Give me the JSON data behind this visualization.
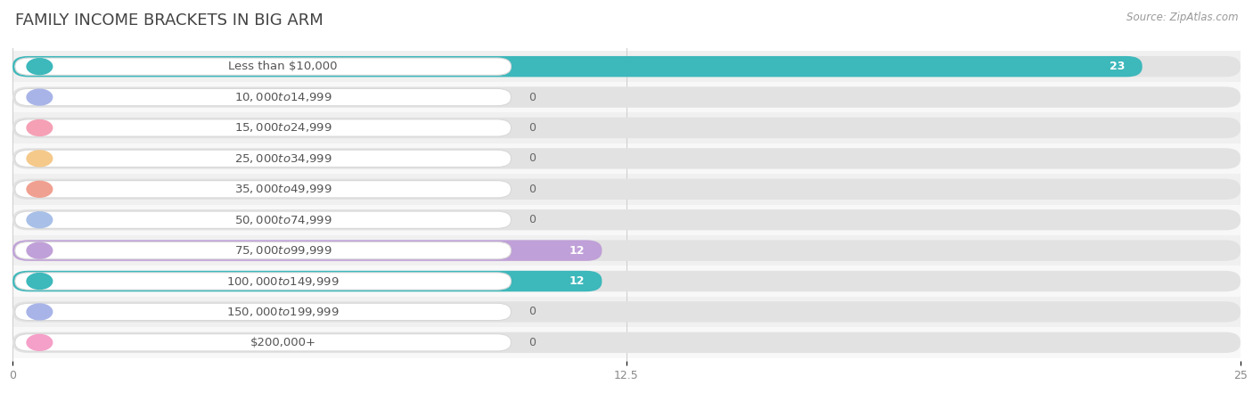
{
  "title": "FAMILY INCOME BRACKETS IN BIG ARM",
  "source": "Source: ZipAtlas.com",
  "categories": [
    "Less than $10,000",
    "$10,000 to $14,999",
    "$15,000 to $24,999",
    "$25,000 to $34,999",
    "$35,000 to $49,999",
    "$50,000 to $74,999",
    "$75,000 to $99,999",
    "$100,000 to $149,999",
    "$150,000 to $199,999",
    "$200,000+"
  ],
  "values": [
    23,
    0,
    0,
    0,
    0,
    0,
    12,
    12,
    0,
    0
  ],
  "bar_colors": [
    "#3db8bb",
    "#a8b4e8",
    "#f5a0b5",
    "#f5c98a",
    "#f0a090",
    "#a8c0e8",
    "#c0a0d8",
    "#3db8bb",
    "#a8b4e8",
    "#f5a0c8"
  ],
  "xlim_max": 25,
  "xticks": [
    0,
    12.5,
    25
  ],
  "bg_color": "#ffffff",
  "row_bg_even": "#f0f0f0",
  "row_bg_odd": "#f8f8f8",
  "bar_track_color": "#e2e2e2",
  "label_box_color": "#ffffff",
  "label_box_edge": "#d8d8d8",
  "title_fontsize": 13,
  "label_fontsize": 9.5,
  "value_fontsize": 9,
  "tick_fontsize": 9
}
